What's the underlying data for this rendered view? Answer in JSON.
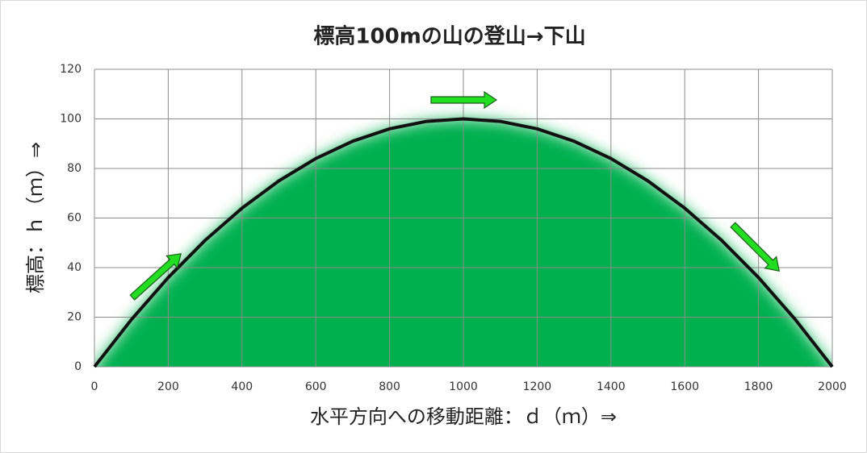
{
  "chart_data": {
    "type": "line",
    "title": "標高100mの山の登山→下山",
    "x_label": "水平方向への移動距離：ｄ（ｍ）⇒",
    "y_label": "標高：ｈ（ｍ）⇒",
    "x": [
      0,
      100,
      200,
      300,
      400,
      500,
      600,
      700,
      800,
      900,
      1000,
      1100,
      1200,
      1300,
      1400,
      1500,
      1600,
      1700,
      1800,
      1900,
      2000
    ],
    "values": [
      0,
      19,
      36,
      51,
      64,
      75,
      84,
      91,
      96,
      99,
      100,
      99,
      96,
      91,
      84,
      75,
      64,
      51,
      36,
      19,
      0
    ],
    "color": "#111111",
    "area_color": "#00b050",
    "xlim": [
      0,
      2000
    ],
    "xticks": [
      0,
      200,
      400,
      600,
      800,
      1000,
      1200,
      1400,
      1600,
      1800,
      2000
    ],
    "ylim": [
      0,
      120
    ],
    "yticks": [
      0,
      20,
      40,
      60,
      80,
      100,
      120
    ],
    "grid": true
  }
}
